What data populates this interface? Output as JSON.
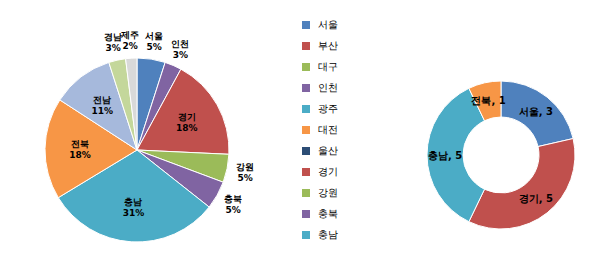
{
  "chart_data": [
    {
      "type": "pie",
      "categories": [
        "서울",
        "인천",
        "경기",
        "강원",
        "충북",
        "충남",
        "전북",
        "전남",
        "경남",
        "제주"
      ],
      "values": [
        5,
        3,
        18,
        5,
        5,
        31,
        18,
        11,
        3,
        2
      ],
      "value_labels": [
        "5%",
        "3%",
        "18%",
        "5%",
        "5%",
        "31%",
        "18%",
        "11%",
        "3%",
        "2%"
      ],
      "colors": [
        "#4f81bd",
        "#8064a2",
        "#c0504d",
        "#9bbb59",
        "#8064a2",
        "#4bacc6",
        "#f79646",
        "#a6b9dc",
        "#c4d79b",
        "#d9d9d9"
      ],
      "legend_entries": [
        {
          "name": "서울",
          "color": "#4f81bd"
        },
        {
          "name": "부산",
          "color": "#c0504d"
        },
        {
          "name": "대구",
          "color": "#9bbb59"
        },
        {
          "name": "인천",
          "color": "#8064a2"
        },
        {
          "name": "광주",
          "color": "#4bacc6"
        },
        {
          "name": "대전",
          "color": "#f79646"
        },
        {
          "name": "울산",
          "color": "#2c4d75"
        },
        {
          "name": "경기",
          "color": "#c0504d"
        },
        {
          "name": "강원",
          "color": "#9bbb59"
        },
        {
          "name": "충북",
          "color": "#8064a2"
        },
        {
          "name": "충남",
          "color": "#4bacc6"
        }
      ]
    },
    {
      "type": "donut",
      "categories": [
        "서울",
        "경기",
        "충남",
        "전북"
      ],
      "values": [
        3,
        5,
        5,
        1
      ],
      "value_labels": [
        "서울, 3",
        "경기, 5",
        "충남, 5",
        "전북, 1"
      ],
      "colors": [
        "#4f81bd",
        "#c0504d",
        "#4bacc6",
        "#f79646"
      ]
    }
  ]
}
